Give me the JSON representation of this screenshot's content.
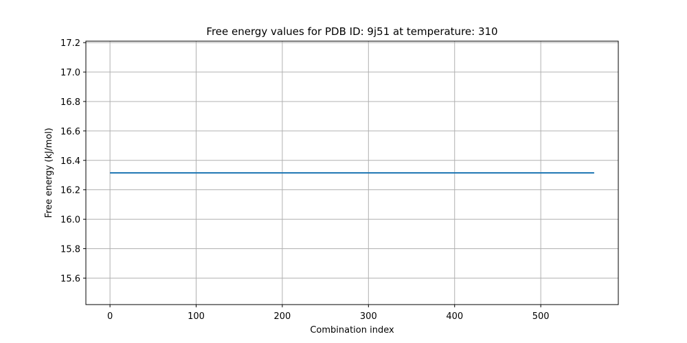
{
  "chart_data": {
    "type": "line",
    "title": "Free energy values for PDB ID: 9j51 at temperature: 310",
    "xlabel": "Combination index",
    "ylabel": "Free energy (kJ/mol)",
    "xlim": [
      -28,
      590
    ],
    "ylim": [
      15.42,
      17.21
    ],
    "xticks": [
      0,
      100,
      200,
      300,
      400,
      500
    ],
    "xtick_labels": [
      "0",
      "100",
      "200",
      "300",
      "400",
      "500"
    ],
    "yticks": [
      15.6,
      15.8,
      16.0,
      16.2,
      16.4,
      16.6,
      16.8,
      17.0,
      17.2
    ],
    "ytick_labels": [
      "15.6",
      "15.8",
      "16.0",
      "16.2",
      "16.4",
      "16.6",
      "16.8",
      "17.0",
      "17.2"
    ],
    "grid": true,
    "series": [
      {
        "color": "#1f77b4",
        "x": [
          0,
          562
        ],
        "y": [
          16.315,
          16.315
        ]
      }
    ]
  }
}
